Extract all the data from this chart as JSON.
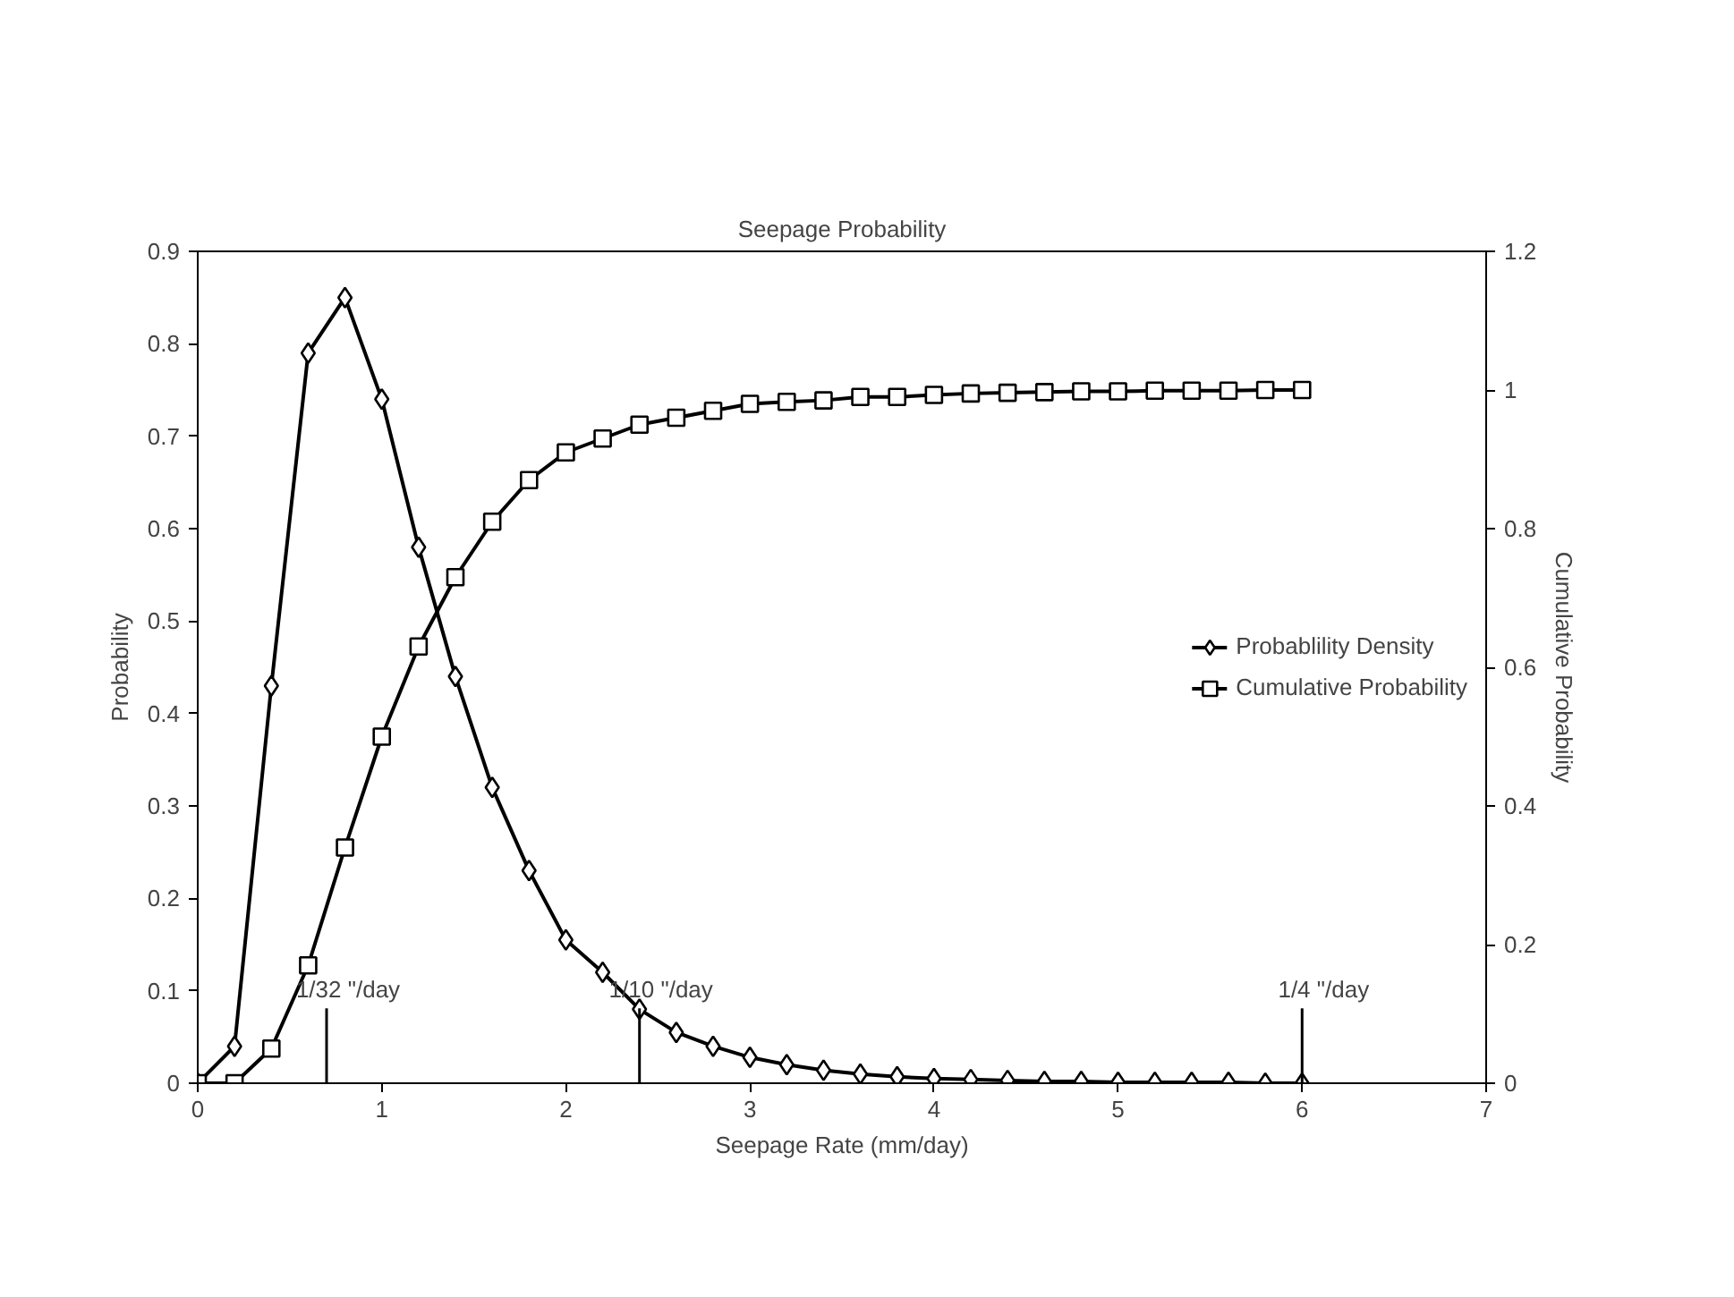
{
  "chart_data": {
    "type": "line",
    "title": "Seepage Probability",
    "xlabel": "Seepage Rate (mm/day)",
    "ylabel": "Probability",
    "y2label": "Cumulative Probability",
    "x": [
      0,
      0.2,
      0.4,
      0.6,
      0.8,
      1.0,
      1.2,
      1.4,
      1.6,
      1.8,
      2.0,
      2.2,
      2.4,
      2.6,
      2.8,
      3.0,
      3.2,
      3.4,
      3.6,
      3.8,
      4.0,
      4.2,
      4.4,
      4.6,
      4.8,
      5.0,
      5.2,
      5.4,
      5.6,
      5.8,
      6.0
    ],
    "series": [
      {
        "name": "Probablility Density",
        "color": "#000000",
        "marker": "diamond",
        "values": [
          0,
          0.04,
          0.43,
          0.79,
          0.85,
          0.74,
          0.58,
          0.44,
          0.32,
          0.23,
          0.155,
          0.12,
          0.08,
          0.055,
          0.04,
          0.028,
          0.02,
          0.014,
          0.01,
          0.007,
          0.005,
          0.004,
          0.003,
          0.002,
          0.002,
          0.001,
          0.001,
          0.001,
          0.001,
          0,
          0
        ]
      },
      {
        "name": "Cumulative Probability",
        "color": "#000000",
        "marker": "square",
        "axis": "y2",
        "values": [
          0,
          0,
          0.05,
          0.17,
          0.34,
          0.5,
          0.63,
          0.73,
          0.81,
          0.87,
          0.91,
          0.93,
          0.95,
          0.96,
          0.97,
          0.98,
          0.983,
          0.985,
          0.99,
          0.99,
          0.993,
          0.995,
          0.996,
          0.997,
          0.998,
          0.998,
          0.999,
          0.999,
          0.999,
          1.0,
          1.0
        ]
      }
    ],
    "ref_lines": [
      {
        "axis": "x",
        "value": 0.7,
        "label": "1/32 \"/day"
      },
      {
        "axis": "x",
        "value": 2.4,
        "label": "1/10 \"/day"
      },
      {
        "axis": "x",
        "value": 6,
        "label": "1/4 \"/day"
      }
    ],
    "xlim": [
      0,
      7
    ],
    "xticks": [
      0,
      1,
      2,
      3,
      4,
      5,
      6,
      7
    ],
    "ylim": [
      0,
      0.9
    ],
    "yticks": [
      0,
      0.1,
      0.2,
      0.3,
      0.4,
      0.5,
      0.6,
      0.7,
      0.8,
      0.9
    ],
    "y2lim": [
      0,
      1.2
    ],
    "y2ticks": [
      0,
      0.2,
      0.4,
      0.6,
      0.8,
      1,
      1.2
    ],
    "grid": false,
    "legend": "right",
    "line_style": "solid"
  }
}
